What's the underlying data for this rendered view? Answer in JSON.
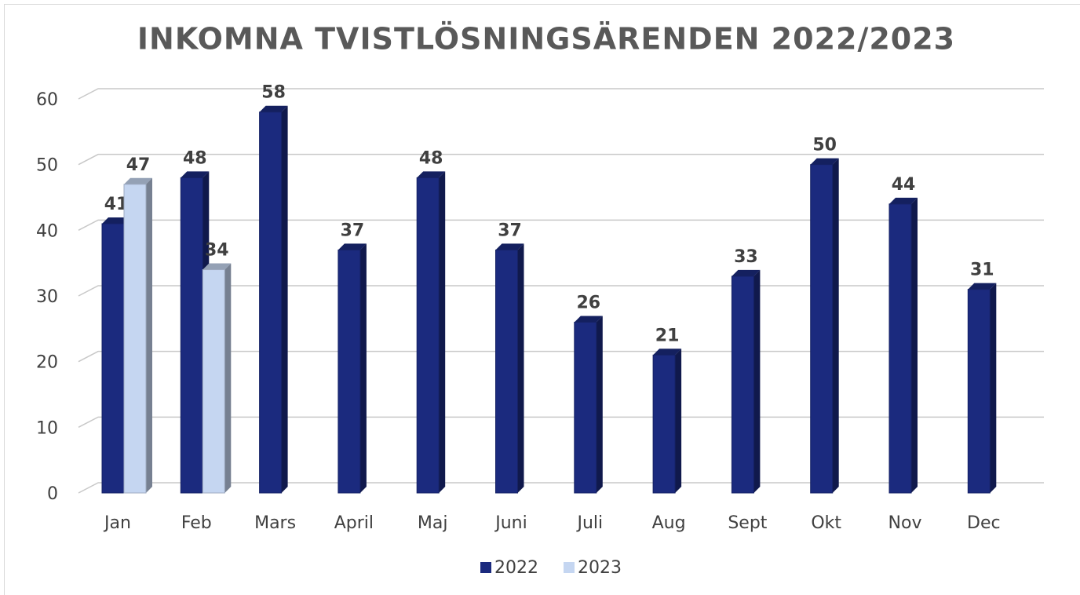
{
  "chart_data": {
    "type": "bar",
    "title": "INKOMNA TVISTLÖSNINGSÄRENDEN 2022/2023",
    "categories": [
      "Jan",
      "Feb",
      "Mars",
      "April",
      "Maj",
      "Juni",
      "Juli",
      "Aug",
      "Sept",
      "Okt",
      "Nov",
      "Dec"
    ],
    "series": [
      {
        "name": "2022",
        "color": "#1b2a7e",
        "values": [
          41,
          48,
          58,
          37,
          48,
          37,
          26,
          21,
          33,
          50,
          44,
          31
        ]
      },
      {
        "name": "2023",
        "color": "#c5d6f1",
        "values": [
          47,
          34,
          null,
          null,
          null,
          null,
          null,
          null,
          null,
          null,
          null,
          null
        ]
      }
    ],
    "ylim": [
      0,
      60
    ],
    "yticks": [
      0,
      10,
      20,
      30,
      40,
      50,
      60
    ],
    "grid": true,
    "legend": "bottom"
  }
}
